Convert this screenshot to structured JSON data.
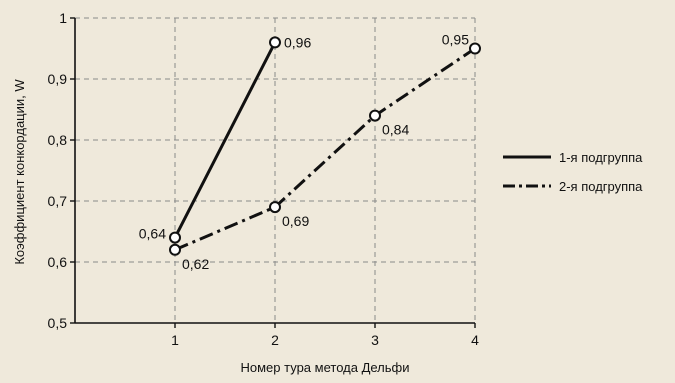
{
  "colors": {
    "background": "#efe9db",
    "grid": "#8a8a8a",
    "axis": "#111111",
    "series": "#111111",
    "marker_fill": "#ffffff"
  },
  "chart_data": {
    "type": "line",
    "title": "",
    "xlabel": "Номер тура метода Дельфи",
    "ylabel": "Коэффициент конкордации, W",
    "xlim": [
      0,
      4
    ],
    "ylim": [
      0.5,
      1
    ],
    "x_ticks": [
      {
        "value": 1,
        "label": "1"
      },
      {
        "value": 2,
        "label": "2"
      },
      {
        "value": 3,
        "label": "3"
      },
      {
        "value": 4,
        "label": "4"
      }
    ],
    "y_ticks": [
      {
        "value": 0.5,
        "label": "0,5"
      },
      {
        "value": 0.6,
        "label": "0,6"
      },
      {
        "value": 0.7,
        "label": "0,7"
      },
      {
        "value": 0.8,
        "label": "0,8"
      },
      {
        "value": 0.9,
        "label": "0,9"
      },
      {
        "value": 1.0,
        "label": "1"
      }
    ],
    "grid": true,
    "grid_style": "dashed",
    "legend_position": "right",
    "series": [
      {
        "name": "1-я подгруппа",
        "line_style": "solid",
        "points": [
          {
            "x": 1,
            "y": 0.64,
            "label": "0,64",
            "label_pos": "left"
          },
          {
            "x": 2,
            "y": 0.96,
            "label": "0,96",
            "label_pos": "right"
          }
        ]
      },
      {
        "name": "2-я подгруппа",
        "line_style": "dash-dot",
        "points": [
          {
            "x": 1,
            "y": 0.62,
            "label": "0,62",
            "label_pos": "below-right"
          },
          {
            "x": 2,
            "y": 0.69,
            "label": "0,69",
            "label_pos": "below-right"
          },
          {
            "x": 3,
            "y": 0.84,
            "label": "0,84",
            "label_pos": "below-right"
          },
          {
            "x": 4,
            "y": 0.95,
            "label": "0,95",
            "label_pos": "above-left"
          }
        ]
      }
    ]
  }
}
